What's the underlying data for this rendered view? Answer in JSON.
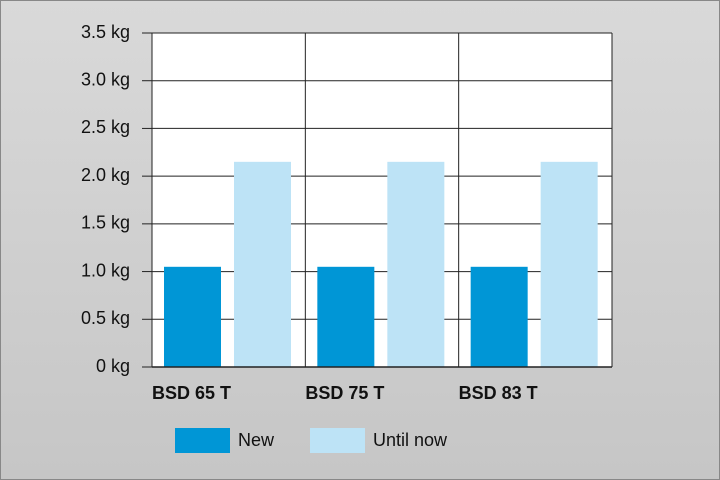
{
  "chart_data": {
    "type": "bar",
    "categories": [
      "BSD 65 T",
      "BSD 75 T",
      "BSD 83 T"
    ],
    "series": [
      {
        "name": "New",
        "color": "#0096d6",
        "values": [
          1.05,
          1.05,
          1.05
        ]
      },
      {
        "name": "Until now",
        "color": "#bde3f6",
        "values": [
          2.15,
          2.15,
          2.15
        ]
      }
    ],
    "ylim": [
      0,
      3.5
    ],
    "yticks": [
      {
        "value": 0,
        "label": "0 kg"
      },
      {
        "value": 0.5,
        "label": "0.5 kg"
      },
      {
        "value": 1,
        "label": "1.0 kg"
      },
      {
        "value": 1.5,
        "label": "1.5 kg"
      },
      {
        "value": 2,
        "label": "2.0 kg"
      },
      {
        "value": 2.5,
        "label": "2.5 kg"
      },
      {
        "value": 3,
        "label": "3.0 kg"
      },
      {
        "value": 3.5,
        "label": "3.5 kg"
      }
    ],
    "grid": true
  }
}
